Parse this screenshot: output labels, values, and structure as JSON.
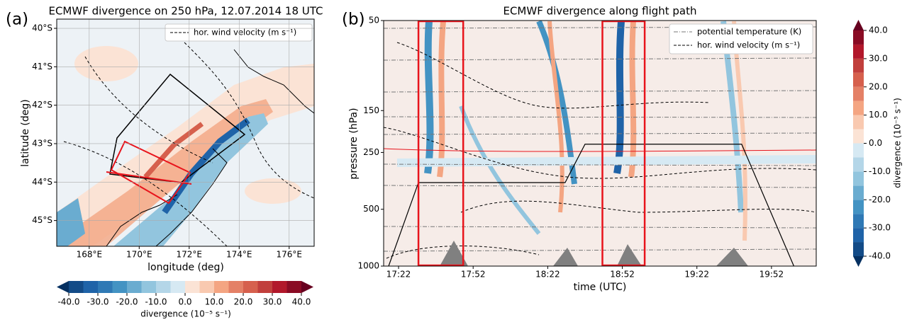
{
  "chart_data": [
    {
      "type": "contour-map",
      "panel_label": "(a)",
      "title": "ECMWF divergence on 250 hPa, 12.07.2014 18 UTC",
      "x_label": "longitude (deg)",
      "y_label": "latitude (deg)",
      "xlim": [
        166.7,
        177.0
      ],
      "xticks": [
        {
          "value": 168,
          "label": "168°E"
        },
        {
          "value": 170,
          "label": "170°E"
        },
        {
          "value": 172,
          "label": "172°E"
        },
        {
          "value": 174,
          "label": "174°E"
        },
        {
          "value": 176,
          "label": "176°E"
        }
      ],
      "ylim": [
        -45.67,
        -39.76
      ],
      "yticks": [
        {
          "value": -40,
          "label": "40°S"
        },
        {
          "value": -41,
          "label": "41°S"
        },
        {
          "value": -42,
          "label": "42°S"
        },
        {
          "value": -43,
          "label": "43°S"
        },
        {
          "value": -44,
          "label": "44°S"
        },
        {
          "value": -45,
          "label": "45°S"
        }
      ],
      "grid": true,
      "legend": [
        "hor. wind velocity (m s⁻¹)"
      ],
      "colorbar": {
        "orientation": "horizontal",
        "label": "divergence (10⁻⁵ s⁻¹)",
        "levels": [
          -40,
          -35,
          -30,
          -25,
          -20,
          -15,
          -10,
          -5,
          0,
          5,
          10,
          15,
          20,
          25,
          30,
          35,
          40
        ],
        "colors": [
          "#134b87",
          "#1f63a8",
          "#2f79b5",
          "#4393c3",
          "#6aacd0",
          "#92c5de",
          "#b4d6e8",
          "#d6e9f3",
          "#fbe3d5",
          "#f9c9b0",
          "#f4a582",
          "#e48066",
          "#d6604d",
          "#c13f3c",
          "#b2182b",
          "#8a0b24"
        ],
        "extend_colors": [
          "#053061",
          "#67001f"
        ],
        "ticks": [
          {
            "value": -40,
            "label": "-40.0"
          },
          {
            "value": -30,
            "label": "-30.0"
          },
          {
            "value": -20,
            "label": "-20.0"
          },
          {
            "value": -10,
            "label": "-10.0"
          },
          {
            "value": 0,
            "label": "0.0"
          },
          {
            "value": 10,
            "label": "10.0"
          },
          {
            "value": 20,
            "label": "20.0"
          },
          {
            "value": 30,
            "label": "30.0"
          },
          {
            "value": 40,
            "label": "40.0"
          }
        ]
      }
    },
    {
      "type": "cross-section",
      "panel_label": "(b)",
      "title": "ECMWF divergence along flight path",
      "x_label": "time (UTC)",
      "y_label": "pressure (hPa)",
      "xlim": [
        "17:16",
        "20:10"
      ],
      "xticks": [
        "17:22",
        "17:52",
        "18:22",
        "18:52",
        "19:22",
        "19:52"
      ],
      "ylim": [
        1000,
        50
      ],
      "log_y": true,
      "yticks": [
        50,
        150,
        250,
        500,
        1000
      ],
      "legend": [
        "potential temperature (K)",
        "hor. wind velocity (m s⁻¹)"
      ],
      "flight_track": {
        "color": "#000000",
        "x": [
          "17:18",
          "17:30",
          "18:29",
          "18:37",
          "19:40",
          "20:01"
        ],
        "values": [
          1000,
          361,
          361,
          226,
          226,
          1000
        ]
      },
      "highlight_windows": [
        [
          "17:30",
          "17:48"
        ],
        [
          "18:44",
          "19:01"
        ]
      ],
      "highlight_color": "#e8141c",
      "colorbar": {
        "orientation": "vertical",
        "label": "divergence (10⁻⁵ s⁻¹)",
        "levels": [
          -40,
          -35,
          -30,
          -25,
          -20,
          -15,
          -10,
          -5,
          0,
          5,
          10,
          15,
          20,
          25,
          30,
          35,
          40
        ],
        "colors": [
          "#134b87",
          "#1f63a8",
          "#2f79b5",
          "#4393c3",
          "#6aacd0",
          "#92c5de",
          "#b4d6e8",
          "#d6e9f3",
          "#fbe3d5",
          "#f9c9b0",
          "#f4a582",
          "#e48066",
          "#d6604d",
          "#c13f3c",
          "#b2182b",
          "#8a0b24"
        ],
        "extend_colors": [
          "#053061",
          "#67001f"
        ],
        "ticks": [
          {
            "value": -40,
            "label": "-40.0"
          },
          {
            "value": -30,
            "label": "-30.0"
          },
          {
            "value": -20,
            "label": "-20.0"
          },
          {
            "value": -10,
            "label": "-10.0"
          },
          {
            "value": 0,
            "label": "0.0"
          },
          {
            "value": 10,
            "label": "10.0"
          },
          {
            "value": 20,
            "label": "20.0"
          },
          {
            "value": 30,
            "label": "30.0"
          },
          {
            "value": 40,
            "label": "40.0"
          }
        ]
      }
    }
  ]
}
